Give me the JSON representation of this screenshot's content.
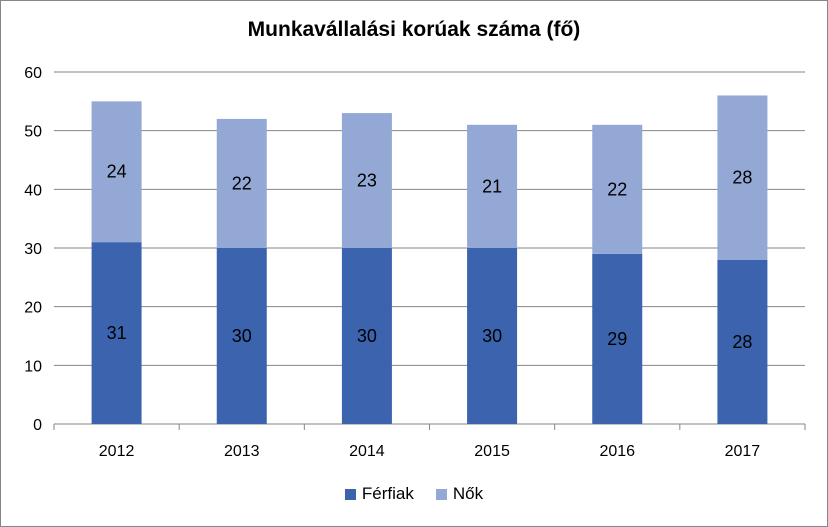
{
  "chart_data": {
    "type": "bar",
    "stacked": true,
    "title": "Munkavállalási korúak száma (fő)",
    "categories": [
      "2012",
      "2013",
      "2014",
      "2015",
      "2016",
      "2017"
    ],
    "series": [
      {
        "name": "Férfiak",
        "color": "#3c64ae",
        "values": [
          31,
          30,
          30,
          30,
          29,
          28
        ]
      },
      {
        "name": "Nők",
        "color": "#94a8d6",
        "values": [
          24,
          22,
          23,
          21,
          22,
          28
        ]
      }
    ],
    "ylim": [
      0,
      60
    ],
    "yticks": [
      0,
      10,
      20,
      30,
      40,
      50,
      60
    ],
    "grid": true,
    "legend_position": "bottom",
    "data_labels": true
  }
}
